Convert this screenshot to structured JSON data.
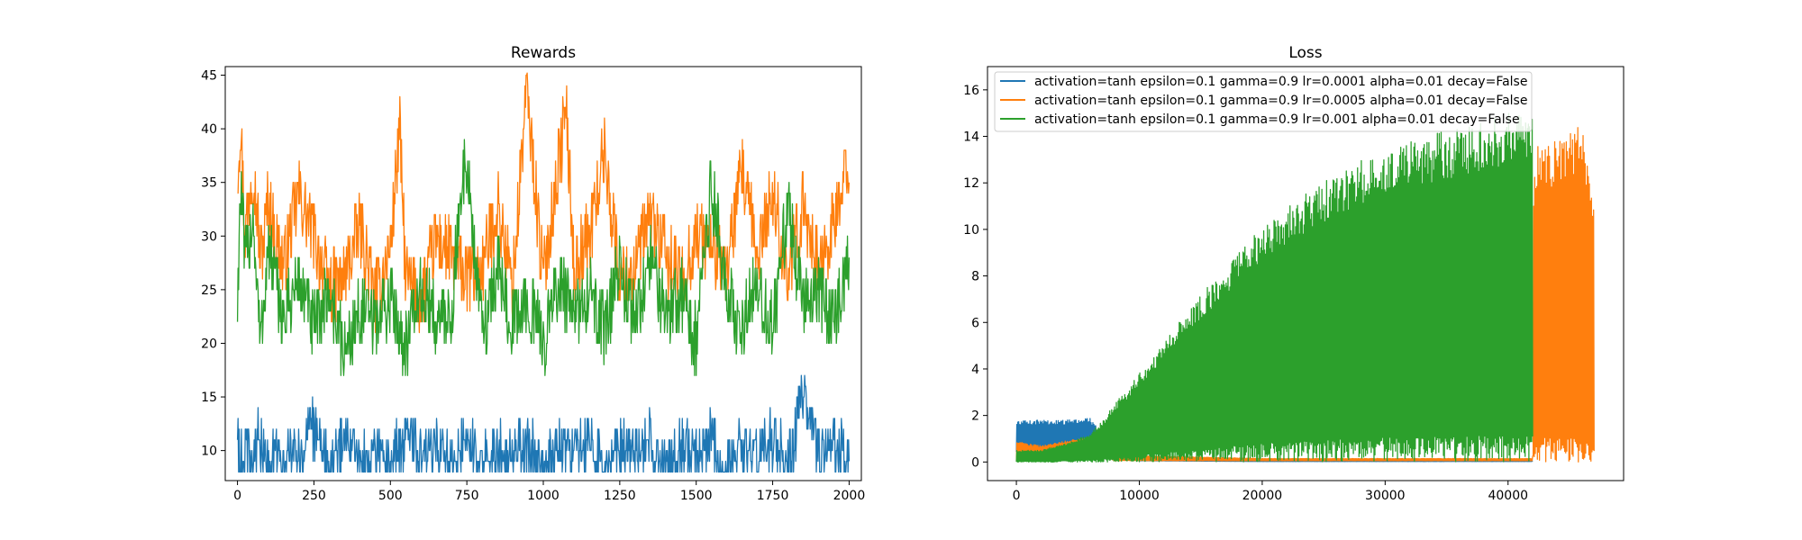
{
  "colors": {
    "blue": "#1f77b4",
    "orange": "#ff7f0e",
    "green": "#2ca02c"
  },
  "chart_data": [
    {
      "type": "line",
      "title": "Rewards",
      "xlabel": "",
      "ylabel": "",
      "xlim": [
        -40,
        2040
      ],
      "ylim": [
        7.2,
        45.8
      ],
      "xticks": [
        0,
        250,
        500,
        750,
        1000,
        1250,
        1500,
        1750,
        2000
      ],
      "yticks": [
        10,
        15,
        20,
        25,
        30,
        35,
        40,
        45
      ],
      "grid": false,
      "legend": "none",
      "series": [
        {
          "color": "#ff7f0e",
          "x": [
            0,
            10,
            25,
            50,
            75,
            100,
            150,
            200,
            250,
            300,
            350,
            400,
            450,
            500,
            530,
            550,
            600,
            650,
            700,
            750,
            800,
            850,
            900,
            945,
            1000,
            1075,
            1100,
            1150,
            1200,
            1250,
            1300,
            1350,
            1400,
            1450,
            1500,
            1550,
            1600,
            1650,
            1700,
            1750,
            1800,
            1850,
            1900,
            1950,
            2000
          ],
          "y": [
            36,
            41,
            30,
            37,
            28,
            33,
            27,
            34,
            30,
            25,
            26,
            31,
            24,
            29,
            40,
            26,
            24,
            30,
            28,
            26,
            27,
            33,
            25,
            44,
            26,
            42,
            27,
            30,
            38,
            26,
            27,
            32,
            28,
            26,
            30,
            29,
            27,
            36,
            28,
            34,
            26,
            33,
            27,
            31,
            37
          ]
        },
        {
          "color": "#2ca02c",
          "x": [
            0,
            10,
            25,
            50,
            75,
            100,
            150,
            200,
            250,
            300,
            350,
            400,
            450,
            500,
            550,
            600,
            650,
            700,
            745,
            800,
            850,
            900,
            950,
            1000,
            1050,
            1100,
            1150,
            1200,
            1250,
            1300,
            1350,
            1400,
            1450,
            1500,
            1550,
            1600,
            1650,
            1700,
            1750,
            1800,
            1850,
            1900,
            1950,
            2000
          ],
          "y": [
            24,
            35,
            27,
            32,
            20,
            29,
            22,
            26,
            21,
            25,
            19,
            23,
            22,
            24,
            20,
            25,
            22,
            23,
            38,
            21,
            27,
            22,
            24,
            20,
            26,
            22,
            25,
            21,
            27,
            22,
            28,
            23,
            25,
            20,
            35,
            24,
            22,
            26,
            21,
            33,
            23,
            25,
            22,
            27
          ]
        },
        {
          "color": "#1f77b4",
          "x": [
            0,
            10,
            25,
            50,
            75,
            100,
            150,
            200,
            250,
            300,
            350,
            400,
            450,
            500,
            550,
            600,
            650,
            700,
            750,
            800,
            850,
            900,
            950,
            1000,
            1050,
            1100,
            1150,
            1200,
            1250,
            1300,
            1350,
            1400,
            1450,
            1500,
            1550,
            1600,
            1650,
            1700,
            1750,
            1800,
            1850,
            1900,
            1950,
            2000
          ],
          "y": [
            12,
            9,
            11,
            10,
            12,
            9,
            11,
            10,
            13,
            9,
            12,
            10,
            11,
            9,
            13,
            10,
            11,
            9,
            12,
            10,
            11,
            10,
            12,
            9,
            11,
            10,
            12,
            9,
            11,
            10,
            12,
            9,
            11,
            10,
            12,
            9,
            11,
            10,
            12,
            9,
            16,
            10,
            11,
            10
          ]
        }
      ]
    },
    {
      "type": "line",
      "title": "Loss",
      "xlabel": "",
      "ylabel": "",
      "xlim": [
        -2350,
        49400
      ],
      "ylim": [
        -0.8,
        17
      ],
      "xticks": [
        0,
        10000,
        20000,
        30000,
        40000
      ],
      "yticks": [
        0,
        2,
        4,
        6,
        8,
        10,
        12,
        14,
        16
      ],
      "grid": false,
      "legend": "upper left",
      "series": [
        {
          "name": "activation=tanh epsilon=0.1 gamma=0.9 lr=0.0001 alpha=0.01 decay=False",
          "color": "#1f77b4",
          "x": [
            0,
            2000,
            4000,
            6000,
            7000,
            10000,
            20000,
            30000,
            40000,
            42000
          ],
          "y_low": [
            0.4,
            0.4,
            0.4,
            0.4,
            0.2,
            0.05,
            0.02,
            0.02,
            0.02,
            0.02
          ],
          "y_high": [
            1.8,
            1.8,
            1.8,
            1.9,
            1.2,
            0.1,
            0.05,
            0.05,
            0.05,
            0.05
          ]
        },
        {
          "name": "activation=tanh epsilon=0.1 gamma=0.9 lr=0.0005 alpha=0.01 decay=False",
          "color": "#ff7f0e",
          "x": [
            0,
            2000,
            4000,
            6000,
            8000,
            20000,
            40000,
            42000,
            42100,
            44000,
            46000,
            47000
          ],
          "y_low": [
            0.0,
            0.1,
            0.3,
            0.5,
            0.05,
            0.05,
            0.05,
            0.05,
            0.0,
            0.0,
            0.0,
            0.0
          ],
          "y_high": [
            0.9,
            0.7,
            0.9,
            1.1,
            0.3,
            0.15,
            0.15,
            0.15,
            13.6,
            13.9,
            14.6,
            11.0
          ]
        },
        {
          "name": "activation=tanh epsilon=0.1 gamma=0.9 lr=0.001 alpha=0.01 decay=False",
          "color": "#2ca02c",
          "x": [
            0,
            2000,
            4000,
            6000,
            7000,
            8000,
            10000,
            12000,
            15000,
            18000,
            20000,
            22000,
            25000,
            28000,
            30000,
            33000,
            35000,
            38000,
            40000,
            41500,
            42000
          ],
          "y_low": [
            0.0,
            0.0,
            0.0,
            0.0,
            0.0,
            0.0,
            0.0,
            0.0,
            0.0,
            0.0,
            0.0,
            0.0,
            0.0,
            0.0,
            0.0,
            0.0,
            0.0,
            0.0,
            0.0,
            0.0,
            0.0
          ],
          "y_high": [
            0.5,
            0.5,
            0.8,
            1.2,
            1.8,
            2.5,
            3.8,
            5.2,
            7.2,
            9.0,
            10.1,
            11.0,
            12.1,
            13.0,
            13.4,
            14.0,
            14.3,
            14.6,
            15.0,
            15.3,
            15.7
          ]
        }
      ]
    }
  ]
}
